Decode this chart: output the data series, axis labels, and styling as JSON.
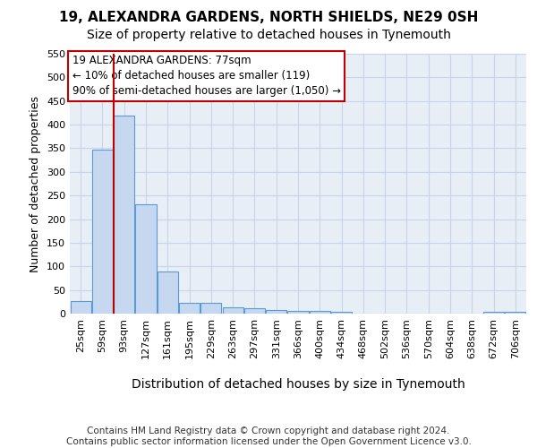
{
  "title1": "19, ALEXANDRA GARDENS, NORTH SHIELDS, NE29 0SH",
  "title2": "Size of property relative to detached houses in Tynemouth",
  "xlabel": "Distribution of detached houses by size in Tynemouth",
  "ylabel": "Number of detached properties",
  "categories": [
    "25sqm",
    "59sqm",
    "93sqm",
    "127sqm",
    "161sqm",
    "195sqm",
    "229sqm",
    "263sqm",
    "297sqm",
    "331sqm",
    "366sqm",
    "400sqm",
    "434sqm",
    "468sqm",
    "502sqm",
    "536sqm",
    "570sqm",
    "604sqm",
    "638sqm",
    "672sqm",
    "706sqm"
  ],
  "values": [
    27,
    348,
    420,
    232,
    90,
    23,
    22,
    14,
    12,
    8,
    6,
    5,
    4,
    0,
    0,
    0,
    0,
    0,
    0,
    4,
    4
  ],
  "bar_color": "#c5d8f0",
  "bar_edge_color": "#5b9bd5",
  "vline_x": 1.5,
  "vline_color": "#c00000",
  "annotation_text": "19 ALEXANDRA GARDENS: 77sqm\n← 10% of detached houses are smaller (119)\n90% of semi-detached houses are larger (1,050) →",
  "annotation_box_color": "#ffffff",
  "annotation_box_edge_color": "#c00000",
  "ylim": [
    0,
    550
  ],
  "yticks": [
    0,
    50,
    100,
    150,
    200,
    250,
    300,
    350,
    400,
    450,
    500,
    550
  ],
  "footer1": "Contains HM Land Registry data © Crown copyright and database right 2024.",
  "footer2": "Contains public sector information licensed under the Open Government Licence v3.0.",
  "bg_color": "#ffffff",
  "plot_bg_color": "#e8eef5",
  "grid_color": "#c8d4e8",
  "title1_fontsize": 11,
  "title2_fontsize": 10,
  "xlabel_fontsize": 10,
  "ylabel_fontsize": 9,
  "tick_fontsize": 8,
  "annotation_fontsize": 8.5,
  "footer_fontsize": 7.5
}
